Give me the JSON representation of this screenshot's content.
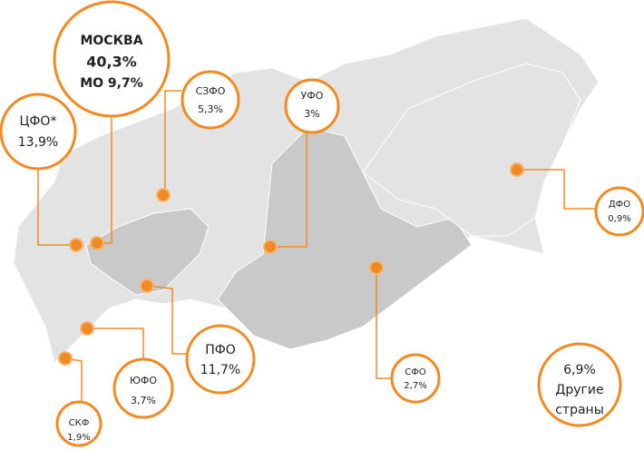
{
  "moscow": {
    "name": "МОСКВА",
    "share": "40,3%",
    "sub": "МО 9,7%"
  },
  "regions": [
    {
      "name": "ЦФО*",
      "share": "13,9%"
    },
    {
      "name": "СЗФО",
      "share": "5,3%"
    },
    {
      "name": "УФО",
      "share": "3%"
    },
    {
      "name": "ДФО",
      "share": "0,9%"
    },
    {
      "name": "ПФО",
      "share": "11,7%"
    },
    {
      "name": "ЮФО",
      "share": "3,7%"
    },
    {
      "name": "СФО",
      "share": "2,7%"
    },
    {
      "name": "СКФ",
      "share": "1,9%"
    }
  ],
  "other": {
    "share": "6,9%",
    "line1": "Другие",
    "line2": "страны"
  }
}
